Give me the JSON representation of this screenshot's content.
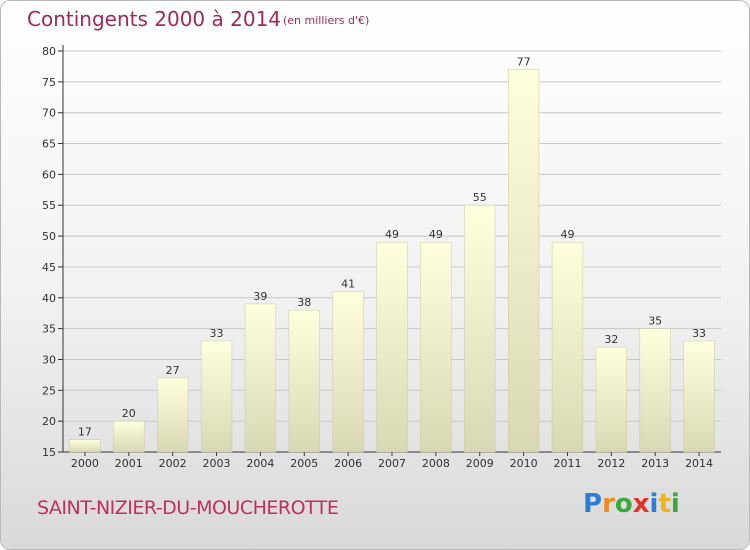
{
  "header": {
    "title": "Contingents 2000 à 2014",
    "subtitle": "(en milliers d'€)"
  },
  "footer": {
    "commune": "SAINT-NIZIER-DU-MOUCHEROTTE",
    "logo_letters": [
      {
        "ch": "P",
        "color": "#2a7fd4"
      },
      {
        "ch": "r",
        "color": "#f08a1c"
      },
      {
        "ch": "o",
        "color": "#3aa83a"
      },
      {
        "ch": "x",
        "color": "#e0342c"
      },
      {
        "ch": "i",
        "color": "#2a7fd4"
      },
      {
        "ch": "t",
        "color": "#f0b41c"
      },
      {
        "ch": "i",
        "color": "#3aa83a"
      }
    ]
  },
  "colors": {
    "title": "#a0285a",
    "bar_top": "#ffffde",
    "bar_bottom": "#d8d8b4",
    "bar_stroke": "#c8c8a0",
    "grid": "#c8c8c8"
  },
  "chart_data": {
    "type": "bar",
    "categories": [
      "2000",
      "2001",
      "2002",
      "2003",
      "2004",
      "2005",
      "2006",
      "2007",
      "2008",
      "2009",
      "2010",
      "2011",
      "2012",
      "2013",
      "2014"
    ],
    "values": [
      17,
      20,
      27,
      33,
      39,
      38,
      41,
      49,
      49,
      55,
      77,
      49,
      32,
      35,
      33
    ],
    "ylim": [
      15,
      80
    ],
    "yticks": [
      15,
      20,
      25,
      30,
      35,
      40,
      45,
      50,
      55,
      60,
      65,
      70,
      75,
      80
    ],
    "grid": true,
    "data_labels": true
  }
}
